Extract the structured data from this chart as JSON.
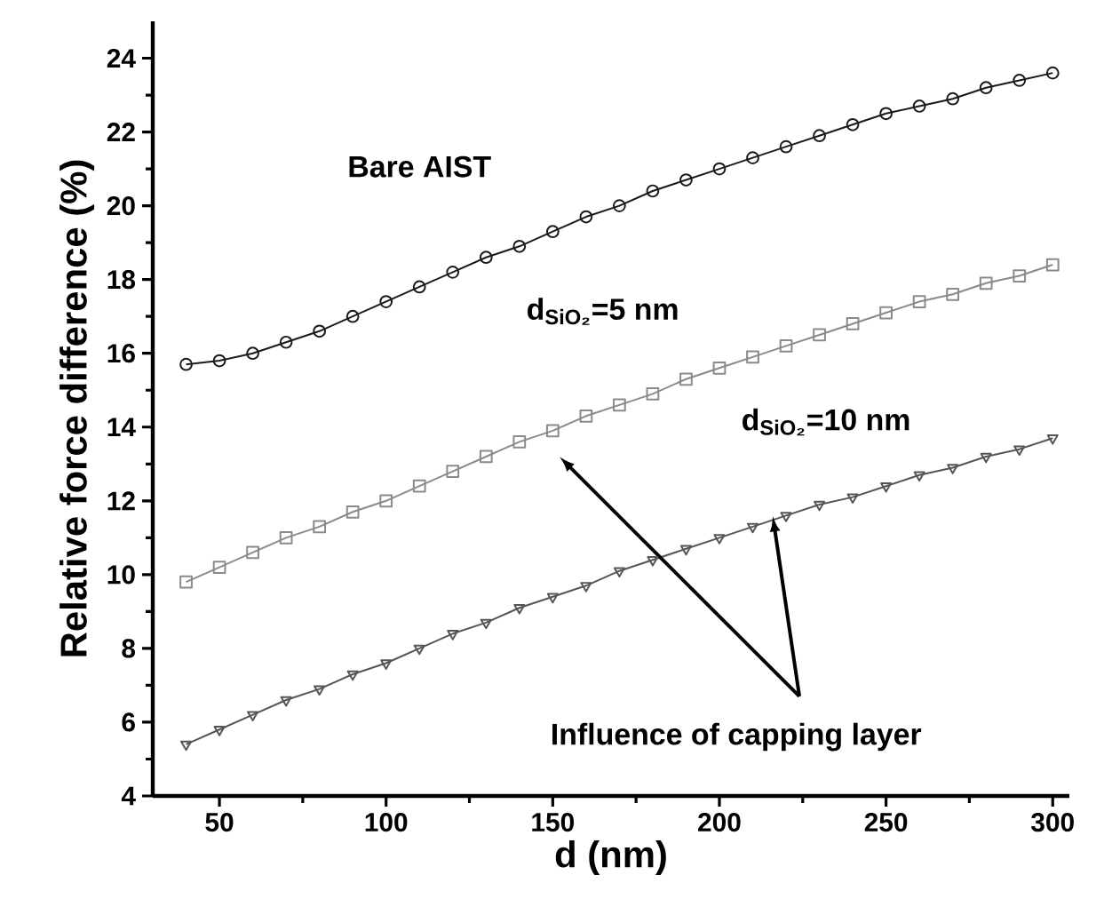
{
  "chart_data": {
    "type": "line",
    "xlabel": "d (nm)",
    "ylabel": "Relative force difference (%)",
    "x": [
      40,
      50,
      60,
      70,
      80,
      90,
      100,
      110,
      120,
      130,
      140,
      150,
      160,
      170,
      180,
      190,
      200,
      210,
      220,
      230,
      240,
      250,
      260,
      270,
      280,
      290,
      300
    ],
    "series": [
      {
        "name": "Bare AIST",
        "color": "#1a1a1a",
        "marker": "circle",
        "values": [
          15.7,
          15.8,
          16.0,
          16.3,
          16.6,
          17.0,
          17.4,
          17.8,
          18.2,
          18.6,
          18.9,
          19.3,
          19.7,
          20.0,
          20.4,
          20.7,
          21.0,
          21.3,
          21.6,
          21.9,
          22.2,
          22.5,
          22.7,
          22.9,
          23.2,
          23.4,
          23.6
        ]
      },
      {
        "name": "d$_{SiO₂}$=5 nm",
        "color": "#8a8a8a",
        "marker": "square",
        "values": [
          9.8,
          10.2,
          10.6,
          11.0,
          11.3,
          11.7,
          12.0,
          12.4,
          12.8,
          13.2,
          13.6,
          13.9,
          14.3,
          14.6,
          14.9,
          15.3,
          15.6,
          15.9,
          16.2,
          16.5,
          16.8,
          17.1,
          17.4,
          17.6,
          17.9,
          18.1,
          18.4
        ]
      },
      {
        "name": "d$_{SiO₂}$=10 nm",
        "color": "#555555",
        "marker": "triangle",
        "values": [
          5.4,
          5.8,
          6.2,
          6.6,
          6.9,
          7.3,
          7.6,
          8.0,
          8.4,
          8.7,
          9.1,
          9.4,
          9.7,
          10.1,
          10.4,
          10.7,
          11.0,
          11.3,
          11.6,
          11.9,
          12.1,
          12.4,
          12.7,
          12.9,
          13.2,
          13.4,
          13.7
        ]
      }
    ],
    "annotations": [
      {
        "text": "Influence of capping layer",
        "x": 216,
        "y": 11.6
      }
    ],
    "xlim": [
      30,
      305
    ],
    "ylim": [
      4,
      25
    ],
    "xticks": [
      50,
      100,
      150,
      200,
      250,
      300
    ],
    "yticks": [
      4,
      6,
      8,
      10,
      12,
      14,
      16,
      18,
      20,
      22,
      24
    ],
    "grid": false,
    "legend": false
  }
}
